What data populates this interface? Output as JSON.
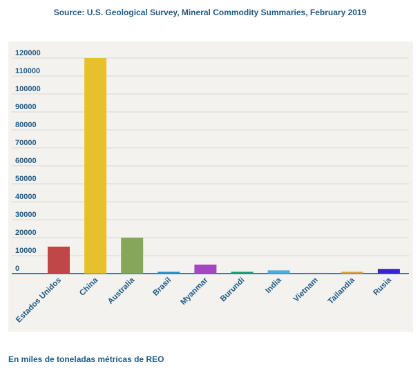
{
  "header": {
    "source": "Source: U.S. Geological Survey, Mineral Commodity Summaries, February 2019"
  },
  "footer": {
    "note": "En miles de toneladas métricas de REO"
  },
  "chart_data": {
    "type": "bar",
    "title": "",
    "xlabel": "",
    "ylabel": "",
    "ylim": [
      0,
      120000
    ],
    "yticks": [
      0,
      10000,
      20000,
      30000,
      40000,
      50000,
      60000,
      70000,
      80000,
      90000,
      100000,
      110000,
      120000
    ],
    "grid": true,
    "categories": [
      "Estados Unidos",
      "China",
      "Australia",
      "Brasil",
      "Myanmar",
      "Burundi",
      "India",
      "Vietnam",
      "Tailandia",
      "Rusia"
    ],
    "values": [
      15000,
      120000,
      20000,
      1000,
      5000,
      1000,
      1800,
      400,
      1000,
      2600
    ],
    "colors": [
      "#bf4747",
      "#e6c12d",
      "#86a65a",
      "#2b8fc9",
      "#a347c2",
      "#1e9c73",
      "#49aedb",
      "#4f8393",
      "#dba24b",
      "#3a1fdb"
    ]
  }
}
